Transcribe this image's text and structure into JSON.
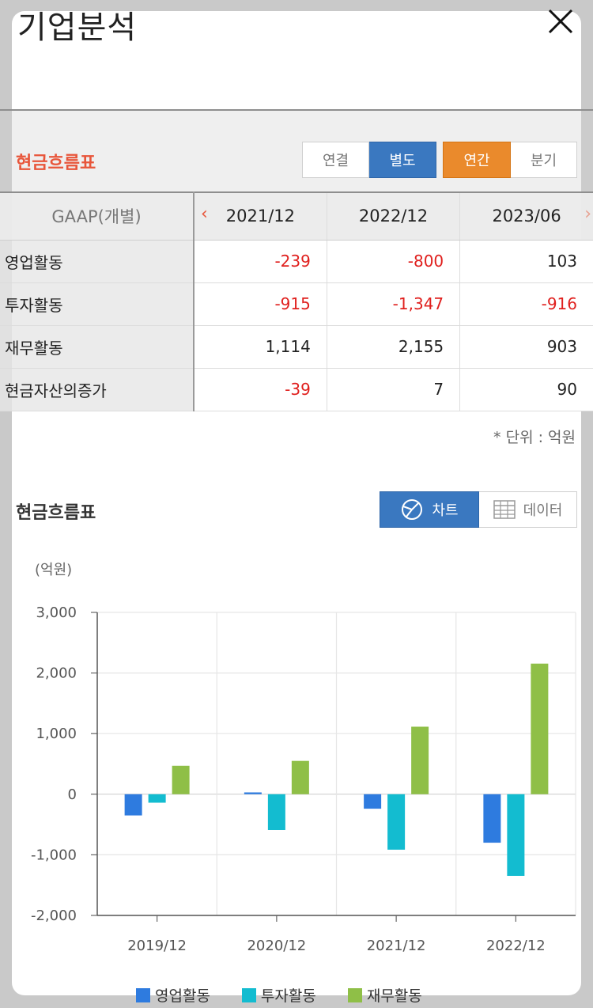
{
  "header": {
    "title": "기업분석"
  },
  "cashflow": {
    "title": "현금흐름표",
    "consolidation": {
      "options": [
        "연결",
        "별도"
      ],
      "selected": "별도"
    },
    "period": {
      "options": [
        "연간",
        "분기"
      ],
      "selected": "연간"
    },
    "table": {
      "corner": "GAAP(개별)",
      "columns": [
        "2021/12",
        "2022/12",
        "2023/06"
      ],
      "rows": [
        {
          "label": "영업활동",
          "values": [
            "-239",
            "-800",
            "103"
          ]
        },
        {
          "label": "투자활동",
          "values": [
            "-915",
            "-1,347",
            "-916"
          ]
        },
        {
          "label": "재무활동",
          "values": [
            "1,114",
            "2,155",
            "903"
          ]
        },
        {
          "label": "현금자산의증가",
          "values": [
            "-39",
            "7",
            "90"
          ]
        }
      ]
    },
    "unit_note": "* 단위 : 억원"
  },
  "chart_section": {
    "title": "현금흐름표",
    "view_toggle": {
      "chart_label": "차트",
      "data_label": "데이터",
      "selected": "차트"
    },
    "unit_label": "(억원)"
  },
  "colors": {
    "operating": "#2e7bdf",
    "investing": "#13bcd0",
    "financing": "#8fbf47",
    "accent": "#e8553a",
    "negative": "#e0201e"
  },
  "chart_data": {
    "type": "bar",
    "categories": [
      "2019/12",
      "2020/12",
      "2021/12",
      "2022/12"
    ],
    "series": [
      {
        "name": "영업활동",
        "values": [
          -350,
          30,
          -239,
          -800
        ]
      },
      {
        "name": "투자활동",
        "values": [
          -140,
          -590,
          -915,
          -1347
        ]
      },
      {
        "name": "재무활동",
        "values": [
          470,
          550,
          1114,
          2155
        ]
      }
    ],
    "ylim": [
      -2000,
      3000
    ],
    "yticks": [
      "3,000",
      "2,000",
      "1,000",
      "0",
      "-1,000",
      "-2,000"
    ],
    "ytick_values": [
      3000,
      2000,
      1000,
      0,
      -1000,
      -2000
    ],
    "grid": true,
    "legend": "bottom"
  }
}
